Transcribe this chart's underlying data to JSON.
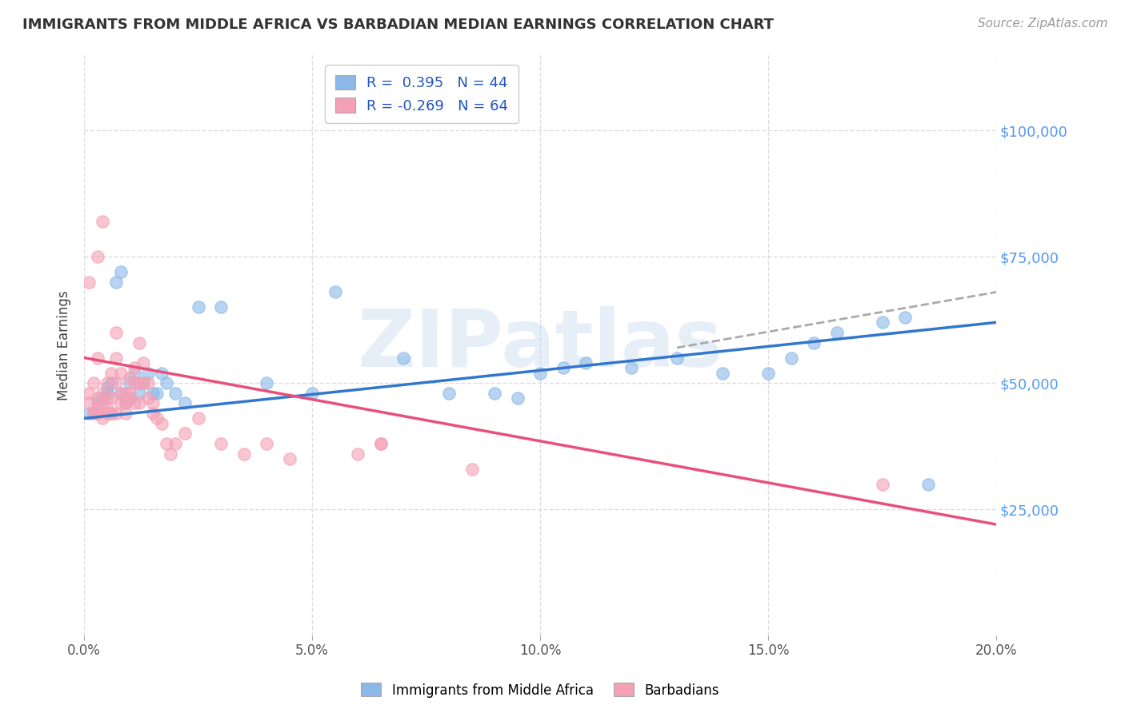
{
  "title": "IMMIGRANTS FROM MIDDLE AFRICA VS BARBADIAN MEDIAN EARNINGS CORRELATION CHART",
  "source": "Source: ZipAtlas.com",
  "ylabel": "Median Earnings",
  "xlabel_ticks": [
    "0.0%",
    "5.0%",
    "10.0%",
    "15.0%",
    "20.0%"
  ],
  "ylabel_ticks": [
    "$25,000",
    "$50,000",
    "$75,000",
    "$100,000"
  ],
  "xlim": [
    0.0,
    0.2
  ],
  "ylim": [
    0,
    115000
  ],
  "blue_color": "#8BB8E8",
  "blue_edge_color": "#8BB8E8",
  "pink_color": "#F4A0B5",
  "pink_edge_color": "#F4A0B5",
  "blue_line_color": "#3377CC",
  "pink_line_color": "#E8507A",
  "gray_line_color": "#AAAAAA",
  "watermark": "ZIPatlas",
  "legend_R_blue": "R =  0.395   N = 44",
  "legend_R_pink": "R = -0.269   N = 64",
  "blue_scatter_x": [
    0.001,
    0.003,
    0.004,
    0.005,
    0.005,
    0.006,
    0.007,
    0.008,
    0.008,
    0.009,
    0.01,
    0.01,
    0.011,
    0.012,
    0.013,
    0.014,
    0.015,
    0.016,
    0.017,
    0.018,
    0.02,
    0.022,
    0.025,
    0.03,
    0.04,
    0.05,
    0.055,
    0.07,
    0.08,
    0.09,
    0.095,
    0.1,
    0.105,
    0.11,
    0.12,
    0.13,
    0.14,
    0.15,
    0.155,
    0.16,
    0.165,
    0.175,
    0.18,
    0.185
  ],
  "blue_scatter_y": [
    44000,
    46000,
    47000,
    48000,
    49000,
    50000,
    70000,
    72000,
    48000,
    46000,
    50000,
    47000,
    52000,
    48000,
    50000,
    52000,
    48000,
    48000,
    52000,
    50000,
    48000,
    46000,
    65000,
    65000,
    50000,
    48000,
    68000,
    55000,
    48000,
    48000,
    47000,
    52000,
    53000,
    54000,
    53000,
    55000,
    52000,
    52000,
    55000,
    58000,
    60000,
    62000,
    63000,
    30000
  ],
  "pink_scatter_x": [
    0.001,
    0.001,
    0.002,
    0.002,
    0.003,
    0.003,
    0.003,
    0.004,
    0.004,
    0.004,
    0.005,
    0.005,
    0.005,
    0.006,
    0.006,
    0.006,
    0.007,
    0.007,
    0.007,
    0.008,
    0.008,
    0.008,
    0.009,
    0.009,
    0.009,
    0.01,
    0.01,
    0.01,
    0.011,
    0.011,
    0.011,
    0.012,
    0.012,
    0.012,
    0.013,
    0.013,
    0.014,
    0.014,
    0.015,
    0.015,
    0.016,
    0.017,
    0.018,
    0.019,
    0.02,
    0.022,
    0.025,
    0.03,
    0.035,
    0.04,
    0.045,
    0.06,
    0.065,
    0.085,
    0.175,
    0.001,
    0.003,
    0.004,
    0.065,
    0.002,
    0.003,
    0.005,
    0.006,
    0.007
  ],
  "pink_scatter_y": [
    46000,
    48000,
    44000,
    50000,
    45000,
    47000,
    55000,
    46000,
    48000,
    43000,
    50000,
    45000,
    47000,
    44000,
    47000,
    52000,
    55000,
    50000,
    60000,
    46000,
    52000,
    48000,
    44000,
    46000,
    48000,
    47000,
    51000,
    48000,
    50000,
    53000,
    46000,
    58000,
    46000,
    50000,
    50000,
    54000,
    50000,
    47000,
    44000,
    46000,
    43000,
    42000,
    38000,
    36000,
    38000,
    40000,
    43000,
    38000,
    36000,
    38000,
    35000,
    36000,
    38000,
    33000,
    30000,
    70000,
    75000,
    82000,
    38000,
    44000,
    44000,
    44000,
    44000,
    44000
  ],
  "blue_trend_x": [
    0.0,
    0.2
  ],
  "blue_trend_y": [
    43000,
    62000
  ],
  "pink_trend_x": [
    0.0,
    0.2
  ],
  "pink_trend_y": [
    55000,
    22000
  ],
  "gray_trend_x": [
    0.13,
    0.2
  ],
  "gray_trend_y": [
    57000,
    68000
  ],
  "grid_color": "#DDDDDD",
  "background_color": "#FFFFFF",
  "right_ytick_color": "#5599EE",
  "title_fontsize": 13,
  "source_fontsize": 11
}
